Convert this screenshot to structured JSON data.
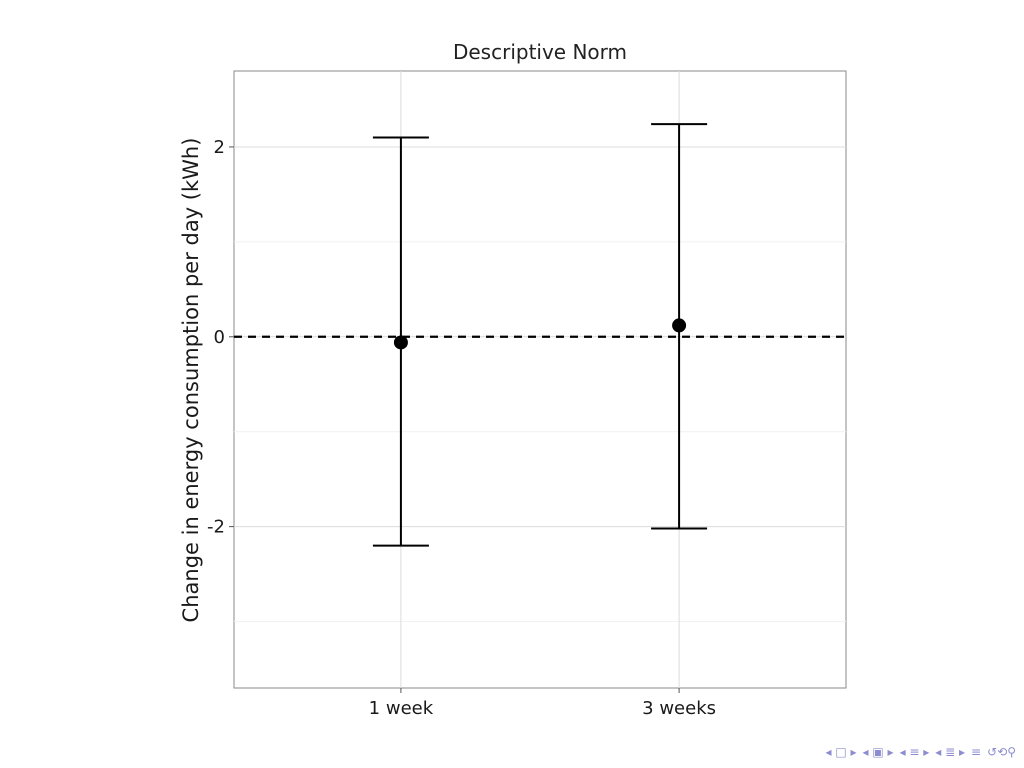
{
  "chart_data": {
    "type": "errorbar",
    "title": "Descriptive Norm",
    "xlabel": "",
    "ylabel": "Change in energy consumption per day (kWh)",
    "categories": [
      "1 week",
      "3 weeks"
    ],
    "points": [
      {
        "category": "1 week",
        "estimate": -0.06,
        "lower": -2.2,
        "upper": 2.1
      },
      {
        "category": "3 weeks",
        "estimate": 0.12,
        "lower": -2.02,
        "upper": 2.24
      }
    ],
    "reference_line": {
      "y": 0,
      "style": "dashed"
    },
    "ylim": [
      -3.7,
      2.8
    ],
    "yticks": [
      {
        "value": 2,
        "label": "2"
      },
      {
        "value": 0,
        "label": "0"
      },
      {
        "value": -2,
        "label": "-2"
      }
    ],
    "grid": true,
    "legend": "none"
  },
  "navigation": {
    "icons": [
      "first-frame-icon",
      "prev-frame-icon",
      "prev-subsection-icon",
      "prev-section-icon",
      "align-icon",
      "search-icon"
    ],
    "color": "#8c8cd0"
  }
}
